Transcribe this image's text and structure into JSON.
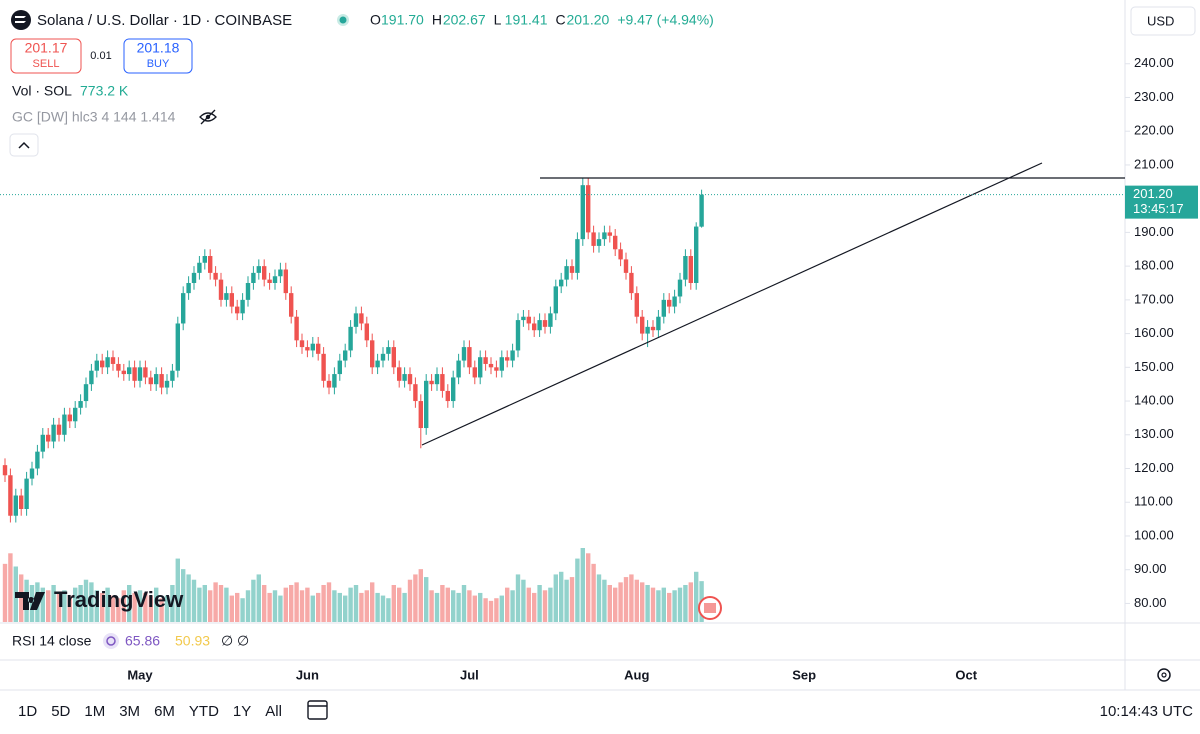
{
  "header": {
    "symbol": "Solana / U.S. Dollar · 1D · COINBASE",
    "ohlc": [
      {
        "label": "O",
        "value": "191.70"
      },
      {
        "label": "H",
        "value": "202.67"
      },
      {
        "label": "L",
        "value": "191.41"
      },
      {
        "label": "C",
        "value": "201.20"
      }
    ],
    "change": "+9.47 (+4.94%)",
    "sell": {
      "price": "201.17",
      "label": "SELL"
    },
    "spread": "0.01",
    "buy": {
      "price": "201.18",
      "label": "BUY"
    },
    "indicator": "GC [DW] hlc3 4 144 1.414",
    "currency": "USD",
    "logo": "TradingView"
  },
  "rsi": {
    "label": "RSI 14 close",
    "value": "65.86",
    "ma": "50.93",
    "na": [
      "∅",
      "∅"
    ]
  },
  "footer": {
    "ranges": [
      "1D",
      "5D",
      "1M",
      "3M",
      "6M",
      "YTD",
      "1Y",
      "All"
    ],
    "clock": "10:14:43 UTC"
  },
  "chart_data": {
    "type": "candlestick",
    "categories": [
      null,
      null,
      null,
      null,
      null,
      null,
      null,
      null,
      null,
      null,
      null,
      null,
      null,
      null,
      null,
      null,
      null,
      null,
      null,
      null,
      null,
      null,
      null,
      null,
      null,
      "May",
      null,
      null,
      null,
      null,
      null,
      null,
      null,
      null,
      null,
      null,
      null,
      null,
      null,
      null,
      null,
      null,
      null,
      null,
      null,
      null,
      null,
      null,
      null,
      null,
      null,
      null,
      null,
      null,
      null,
      null,
      "Jun",
      null,
      null,
      null,
      null,
      null,
      null,
      null,
      null,
      null,
      null,
      null,
      null,
      null,
      null,
      null,
      null,
      null,
      null,
      null,
      null,
      null,
      null,
      null,
      null,
      null,
      null,
      null,
      null,
      null,
      "Jul",
      null,
      null,
      null,
      null,
      null,
      null,
      null,
      null,
      null,
      null,
      null,
      null,
      null,
      null,
      null,
      null,
      null,
      null,
      null,
      null,
      null,
      null,
      null,
      null,
      null,
      null,
      null,
      null,
      null,
      null,
      "Aug",
      null,
      null,
      null,
      null,
      null,
      null,
      null,
      null,
      null,
      null,
      null,
      null
    ],
    "extra_months": [
      "Sep",
      "Oct"
    ],
    "open": [
      121,
      118,
      106,
      112,
      108,
      117,
      120,
      125,
      130,
      128,
      133,
      130,
      136,
      134,
      138,
      140,
      145,
      149,
      152,
      150,
      153,
      151,
      149,
      148,
      150,
      146,
      150,
      147,
      145,
      148,
      144,
      146,
      149,
      163,
      172,
      175,
      178,
      181,
      183,
      178,
      176,
      170,
      172,
      168,
      166,
      170,
      175,
      178,
      180,
      176,
      175,
      177,
      179,
      172,
      165,
      158,
      156,
      155,
      157,
      154,
      146,
      144,
      148,
      152,
      155,
      162,
      166,
      163,
      158,
      150,
      152,
      154,
      156,
      150,
      146,
      148,
      145,
      140,
      132,
      146,
      145,
      148,
      143,
      140,
      147,
      152,
      156,
      150,
      147,
      153,
      151,
      150,
      149,
      153,
      152,
      155,
      164,
      165,
      163,
      161,
      164,
      162,
      166,
      174,
      176,
      180,
      178,
      188,
      204,
      190,
      186,
      188,
      190,
      189,
      185,
      182,
      178,
      172,
      165,
      160,
      162,
      161,
      165,
      170,
      168,
      171,
      176,
      183,
      175,
      191.7
    ],
    "high": [
      123,
      120,
      114,
      114,
      119,
      122,
      127,
      132,
      132,
      135,
      135,
      138,
      138,
      140,
      142,
      147,
      151,
      154,
      154,
      155,
      155,
      153,
      151,
      152,
      152,
      152,
      152,
      149,
      150,
      150,
      148,
      151,
      165,
      174,
      177,
      180,
      183,
      185,
      185,
      180,
      178,
      174,
      174,
      170,
      172,
      177,
      180,
      182,
      182,
      178,
      179,
      181,
      181,
      174,
      167,
      160,
      158,
      159,
      159,
      156,
      148,
      150,
      154,
      157,
      164,
      168,
      168,
      165,
      160,
      154,
      156,
      158,
      158,
      152,
      150,
      150,
      147,
      142,
      148,
      148,
      150,
      150,
      145,
      149,
      154,
      158,
      158,
      152,
      155,
      155,
      153,
      152,
      155,
      155,
      157,
      166,
      167,
      167,
      165,
      166,
      166,
      168,
      176,
      178,
      182,
      182,
      190,
      206,
      206,
      192,
      190,
      192,
      192,
      191,
      187,
      184,
      180,
      174,
      167,
      164,
      164,
      167,
      172,
      172,
      173,
      178,
      185,
      185,
      193,
      202.67
    ],
    "low": [
      116,
      104,
      104,
      106,
      106,
      115,
      118,
      123,
      126,
      126,
      128,
      128,
      132,
      132,
      136,
      138,
      143,
      147,
      148,
      148,
      149,
      147,
      146,
      146,
      144,
      144,
      145,
      143,
      143,
      142,
      142,
      144,
      147,
      161,
      170,
      173,
      176,
      179,
      176,
      174,
      168,
      168,
      166,
      164,
      164,
      168,
      173,
      176,
      174,
      173,
      173,
      175,
      170,
      163,
      156,
      154,
      153,
      153,
      152,
      144,
      142,
      142,
      146,
      150,
      153,
      160,
      161,
      156,
      148,
      148,
      150,
      152,
      148,
      144,
      144,
      143,
      138,
      126,
      130,
      143,
      143,
      141,
      138,
      138,
      145,
      150,
      148,
      145,
      145,
      149,
      148,
      147,
      147,
      150,
      150,
      153,
      162,
      161,
      159,
      159,
      160,
      160,
      164,
      172,
      174,
      176,
      176,
      186,
      188,
      184,
      184,
      186,
      187,
      183,
      180,
      176,
      170,
      163,
      158,
      156,
      159,
      159,
      163,
      166,
      166,
      169,
      174,
      173,
      173,
      191.41
    ],
    "close": [
      118,
      106,
      112,
      108,
      117,
      120,
      125,
      130,
      128,
      133,
      130,
      136,
      134,
      138,
      140,
      145,
      149,
      152,
      150,
      153,
      151,
      149,
      148,
      150,
      146,
      150,
      147,
      145,
      148,
      144,
      146,
      149,
      163,
      172,
      175,
      178,
      181,
      183,
      178,
      176,
      170,
      172,
      168,
      166,
      170,
      175,
      178,
      180,
      176,
      175,
      177,
      179,
      172,
      165,
      158,
      156,
      155,
      157,
      154,
      146,
      144,
      148,
      152,
      155,
      162,
      166,
      163,
      158,
      150,
      152,
      154,
      156,
      150,
      146,
      148,
      145,
      140,
      132,
      146,
      145,
      148,
      143,
      140,
      147,
      152,
      156,
      150,
      147,
      153,
      151,
      150,
      149,
      153,
      152,
      155,
      164,
      165,
      163,
      161,
      164,
      162,
      166,
      174,
      176,
      180,
      178,
      188,
      204,
      190,
      186,
      188,
      190,
      189,
      185,
      182,
      178,
      172,
      165,
      160,
      162,
      161,
      165,
      170,
      168,
      171,
      176,
      183,
      175,
      191.73,
      201.2
    ],
    "up_color": "#26a69a",
    "down_color": "#ef5350",
    "volume_label": "Vol · SOL",
    "volume_last_label": "773.2 K",
    "volume": [
      1100,
      1300,
      1050,
      900,
      800,
      700,
      750,
      650,
      600,
      700,
      550,
      600,
      500,
      650,
      700,
      800,
      750,
      600,
      550,
      650,
      500,
      450,
      600,
      700,
      550,
      600,
      550,
      500,
      650,
      450,
      500,
      700,
      1200,
      1000,
      900,
      800,
      650,
      700,
      600,
      750,
      700,
      650,
      500,
      550,
      450,
      600,
      800,
      900,
      700,
      550,
      600,
      500,
      650,
      700,
      750,
      600,
      650,
      500,
      550,
      700,
      750,
      600,
      550,
      500,
      650,
      700,
      550,
      600,
      750,
      550,
      500,
      450,
      700,
      650,
      550,
      800,
      900,
      1000,
      850,
      600,
      550,
      700,
      650,
      600,
      550,
      700,
      600,
      500,
      550,
      450,
      400,
      450,
      500,
      650,
      600,
      900,
      800,
      650,
      550,
      700,
      600,
      650,
      900,
      950,
      800,
      850,
      1200,
      1400,
      1300,
      1100,
      900,
      800,
      700,
      650,
      750,
      850,
      900,
      800,
      750,
      700,
      650,
      600,
      650,
      550,
      600,
      650,
      700,
      750,
      950,
      773.2
    ],
    "last_price_label": "201.20",
    "countdown": "13:45:17",
    "ylim": [
      74.2,
      258.9
    ],
    "yticks": [
      {
        "value": 80,
        "label": "80.00"
      },
      {
        "value": 90,
        "label": "90.00"
      },
      {
        "value": 100,
        "label": "100.00"
      },
      {
        "value": 110,
        "label": "110.00"
      },
      {
        "value": 120,
        "label": "120.00"
      },
      {
        "value": 130,
        "label": "130.00"
      },
      {
        "value": 140,
        "label": "140.00"
      },
      {
        "value": 150,
        "label": "150.00"
      },
      {
        "value": 160,
        "label": "160.00"
      },
      {
        "value": 170,
        "label": "170.00"
      },
      {
        "value": 180,
        "label": "180.00"
      },
      {
        "value": 190,
        "label": "190.00"
      },
      {
        "value": 200,
        "label": "200.00"
      },
      {
        "value": 210,
        "label": "210.00"
      },
      {
        "value": 220,
        "label": "220.00"
      },
      {
        "value": 230,
        "label": "230.00"
      },
      {
        "value": 240,
        "label": "240.00"
      }
    ],
    "grid": false
  }
}
